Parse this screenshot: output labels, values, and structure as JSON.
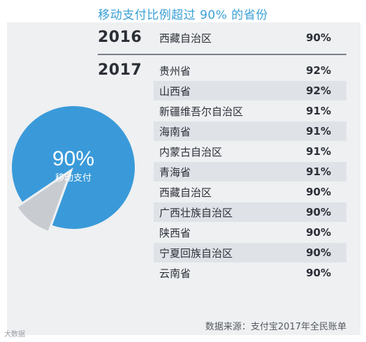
{
  "title": "移动支付比例超过 90% 的省份",
  "chart_data": {
    "type": "table",
    "groups": [
      {
        "year": "2016",
        "rows": [
          {
            "name": "西藏自治区",
            "value": "90%"
          }
        ]
      },
      {
        "year": "2017",
        "rows": [
          {
            "name": "贵州省",
            "value": "92%"
          },
          {
            "name": "山西省",
            "value": "92%"
          },
          {
            "name": "新疆维吾尔自治区",
            "value": "91%"
          },
          {
            "name": "海南省",
            "value": "91%"
          },
          {
            "name": "内蒙古自治区",
            "value": "91%"
          },
          {
            "name": "青海省",
            "value": "91%"
          },
          {
            "name": "西藏自治区",
            "value": "90%"
          },
          {
            "name": "广西壮族自治区",
            "value": "90%"
          },
          {
            "name": "陕西省",
            "value": "90%"
          },
          {
            "name": "宁夏回族自治区",
            "value": "90%"
          },
          {
            "name": "云南省",
            "value": "90%"
          }
        ]
      }
    ],
    "pie": {
      "type": "pie",
      "value_percent": 90,
      "label_value": "90%",
      "label_text": "移动支付",
      "colors": {
        "main": "#3a9ad9",
        "rest": "#c8ccd1"
      }
    }
  },
  "source": "数据来源：支付宝2017年全民账单",
  "watermark": "大数据"
}
